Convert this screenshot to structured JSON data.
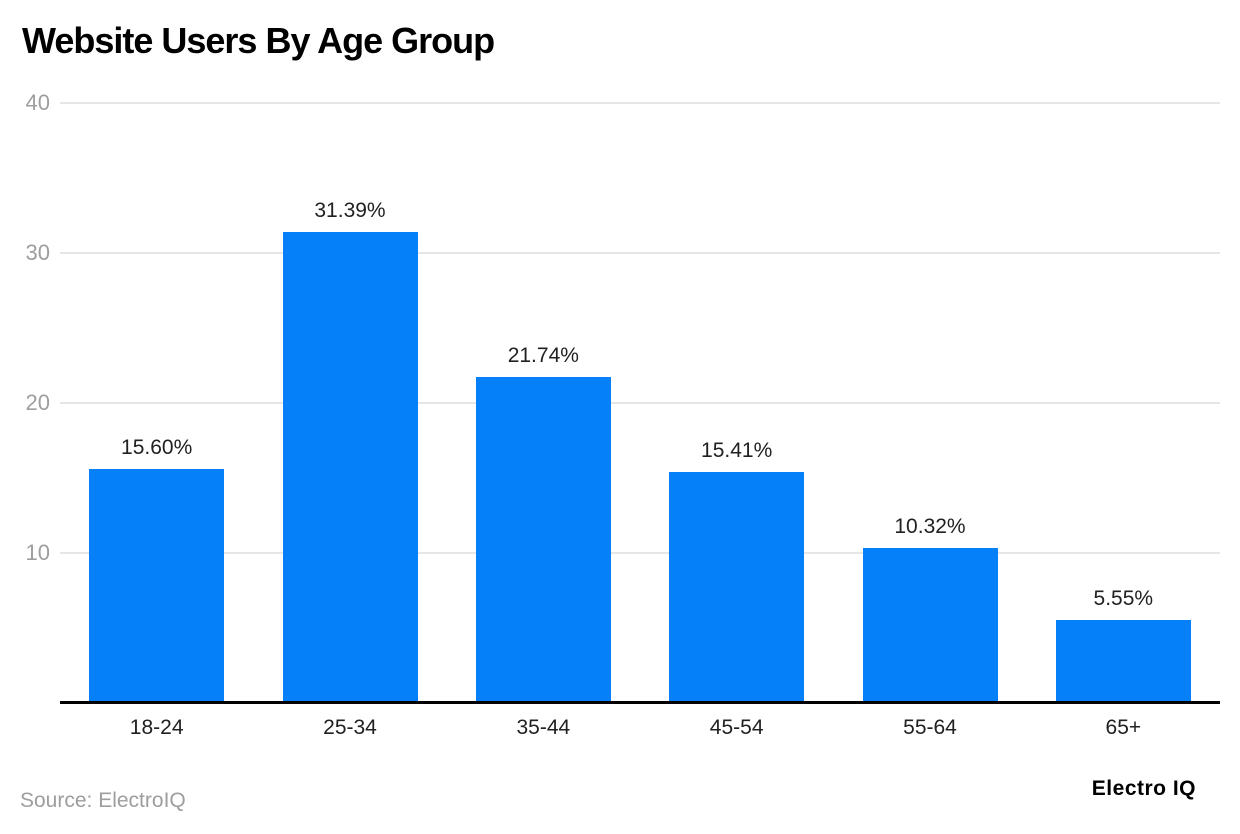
{
  "chart_data": {
    "type": "bar",
    "title": "Website Users By Age Group",
    "categories": [
      "18-24",
      "25-34",
      "35-44",
      "45-54",
      "55-64",
      "65+"
    ],
    "values": [
      15.6,
      31.39,
      21.74,
      15.41,
      10.32,
      5.55
    ],
    "value_labels": [
      "15.60%",
      "31.39%",
      "21.74%",
      "15.41%",
      "10.32%",
      "5.55%"
    ],
    "xlabel": "",
    "ylabel": "",
    "ylim": [
      0,
      40
    ],
    "yticks": [
      10,
      20,
      30,
      40
    ],
    "ytick_labels": [
      "10",
      "20",
      "30",
      "40"
    ],
    "grid": true,
    "legend_position": "none",
    "bar_color": "#0680f9",
    "gridline_color": "#e6e6e6",
    "axis_line_color": "#000000",
    "tick_label_color": "#9e9e9e",
    "data_label_color": "#212121"
  },
  "footer": {
    "source": "Source: ElectroIQ",
    "brand": "Electro IQ"
  }
}
